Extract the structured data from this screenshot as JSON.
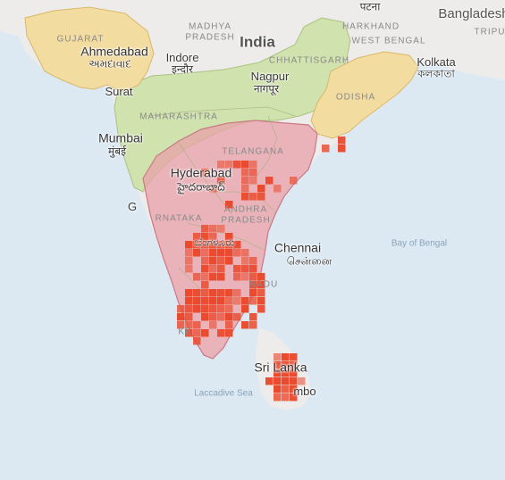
{
  "colors": {
    "water": "#dce9f3",
    "land": "#eeecea",
    "region_green": "#cfe2aa",
    "region_tan": "#f3dca0",
    "range_fill": "#e8a0a8",
    "range_stroke": "#c97a84",
    "cell_fill": "#ea4a2e"
  },
  "labels": {
    "country_india": "India",
    "country_bangladesh": "Bangladesh",
    "state_madhya": "MADHYA",
    "state_pradesh": "PRADESH",
    "state_gujarat": "GUJARAT",
    "state_jharkhand": "HARKHAND",
    "state_westbengal": "WEST BENGAL",
    "state_chhattisgarh": "CHHATTISGARH",
    "state_maharashtra": "MAHARASHTRA",
    "state_odisha": "ODISHA",
    "state_telangana": "TELANGANA",
    "state_karnataka": "RNATAKA",
    "state_andhra": "ANDHRA",
    "state_andhra2": "PRADESH",
    "state_tamil": "NADU",
    "state_tripura": "TRIPU",
    "city_ahmedabad": "Ahmedabad",
    "city_ahmedabad_script": "અમદાવાદ",
    "city_surat": "Surat",
    "city_indore": "Indore",
    "city_indore_script": "इन्दौर",
    "city_nagpur": "Nagpur",
    "city_nagpur_script": "नागपूर",
    "city_kolkata": "Kolkata",
    "city_kolkata_script": "কলকাতা",
    "city_patna_script": "पटना",
    "city_mumbai": "Mumbai",
    "city_mumbai_script": "मुंबई",
    "city_hyderabad": "Hyderabad",
    "city_hyderabad_script": "హైదరాబాద్",
    "city_chennai": "Chennai",
    "city_chennai_script": "சென்னை",
    "city_bangalore_script": "ಬೆಂಗಳೂರು",
    "city_kerala": "KE",
    "city_srilanka": "Sri Lanka",
    "city_colombo": "mbo",
    "city_goa": "G",
    "water_bay": "Bay of Bengal",
    "water_laccadive": "Laccadive Sea"
  },
  "map_info": {
    "occurrence_cells": 260,
    "regions_shown": [
      "green",
      "tan",
      "range"
    ]
  }
}
